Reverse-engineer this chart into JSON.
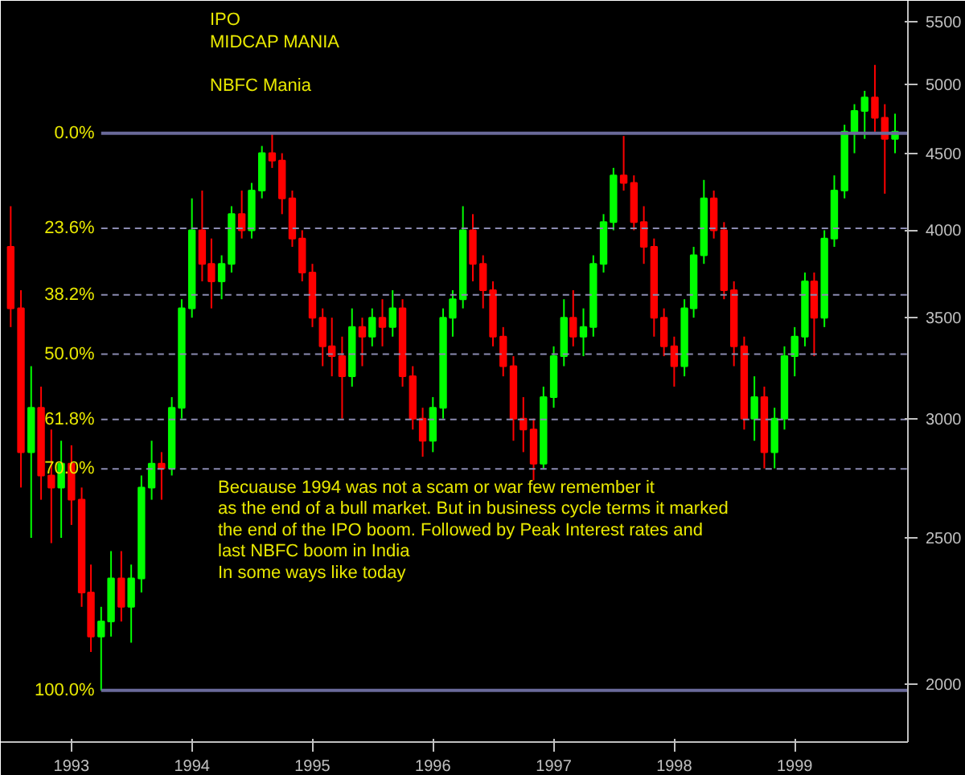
{
  "chart_data": {
    "type": "candlestick",
    "annotations": [
      "IPO",
      "MIDCAP MANIA",
      "NBFC Mania",
      "Becuause 1994 was not a scam or war few remember it\nas the end of a bull market. But in business cycle terms it marked\nthe end of the IPO boom. Followed by Peak Interest rates and\nlast NBFC boom in India\nIn some ways like today",
      {
        "text": "0.0%",
        "x": "1993-04-01",
        "y": 4640
      },
      {
        "text": "23.6%",
        "x": "1993-04-01",
        "y": 4012
      },
      {
        "text": "38.2%",
        "x": "1993-04-01",
        "y": 3624
      },
      {
        "text": "50.0%",
        "x": "1993-04-01",
        "y": 3310
      },
      {
        "text": "61.8%",
        "x": "1993-04-01",
        "y": 2996
      },
      {
        "text": "70.0%",
        "x": "1993-04-01",
        "y": 2778
      },
      {
        "text": "100.0%",
        "x": "1993-04-01",
        "y": 1980
      }
    ],
    "x": [
      "1992-07",
      "1992-08",
      "1992-09",
      "1992-10",
      "1992-11",
      "1992-12",
      "1993-01",
      "1993-02",
      "1993-03",
      "1993-04",
      "1993-05",
      "1993-06",
      "1993-07",
      "1993-08",
      "1993-09",
      "1993-10",
      "1993-11",
      "1993-12",
      "1994-01",
      "1994-02",
      "1994-03",
      "1994-04",
      "1994-05",
      "1994-06",
      "1994-07",
      "1994-08",
      "1994-09",
      "1994-10",
      "1994-11",
      "1994-12",
      "1995-01",
      "1995-02",
      "1995-03",
      "1995-04",
      "1995-05",
      "1995-06",
      "1995-07",
      "1995-08",
      "1995-09",
      "1995-10",
      "1995-11",
      "1995-12",
      "1996-01",
      "1996-02",
      "1996-03",
      "1996-04",
      "1996-05",
      "1996-06",
      "1996-07",
      "1996-08",
      "1996-09",
      "1996-10",
      "1996-11",
      "1996-12",
      "1997-01",
      "1997-02",
      "1997-03",
      "1997-04",
      "1997-05",
      "1997-06",
      "1997-07",
      "1997-08",
      "1997-09",
      "1997-10",
      "1997-11",
      "1997-12",
      "1998-01",
      "1998-02",
      "1998-03",
      "1998-04",
      "1998-05",
      "1998-06",
      "1998-07",
      "1998-08",
      "1998-09",
      "1998-10",
      "1998-11",
      "1998-12",
      "1999-01",
      "1999-02",
      "1999-03",
      "1999-04",
      "1999-05",
      "1999-06",
      "1999-07",
      "1999-08",
      "1999-09",
      "1999-10",
      "1999-11"
    ],
    "ohlc": [
      [
        3900,
        4150,
        3450,
        3550
      ],
      [
        3550,
        3650,
        2700,
        2850
      ],
      [
        2850,
        3250,
        2500,
        3050
      ],
      [
        3050,
        3150,
        2650,
        2750
      ],
      [
        2750,
        2950,
        2480,
        2700
      ],
      [
        2700,
        2900,
        2500,
        2800
      ],
      [
        2800,
        2880,
        2550,
        2650
      ],
      [
        2650,
        2700,
        2250,
        2300
      ],
      [
        2300,
        2400,
        2100,
        2150
      ],
      [
        2150,
        2250,
        1980,
        2200
      ],
      [
        2200,
        2450,
        2150,
        2350
      ],
      [
        2350,
        2450,
        2200,
        2250
      ],
      [
        2250,
        2400,
        2130,
        2350
      ],
      [
        2350,
        2750,
        2300,
        2700
      ],
      [
        2700,
        2900,
        2650,
        2800
      ],
      [
        2800,
        2850,
        2650,
        2780
      ],
      [
        2780,
        3100,
        2750,
        3050
      ],
      [
        3050,
        3600,
        3000,
        3550
      ],
      [
        3550,
        4200,
        3500,
        4000
      ],
      [
        4000,
        4250,
        3700,
        3800
      ],
      [
        3800,
        3950,
        3550,
        3700
      ],
      [
        3700,
        3850,
        3600,
        3800
      ],
      [
        3800,
        4150,
        3750,
        4100
      ],
      [
        4100,
        4250,
        3950,
        4000
      ],
      [
        4000,
        4300,
        3950,
        4250
      ],
      [
        4250,
        4550,
        4200,
        4500
      ],
      [
        4500,
        4640,
        4400,
        4450
      ],
      [
        4450,
        4500,
        4100,
        4200
      ],
      [
        4200,
        4250,
        3900,
        3950
      ],
      [
        3950,
        4000,
        3700,
        3750
      ],
      [
        3750,
        3800,
        3450,
        3500
      ],
      [
        3500,
        3550,
        3250,
        3350
      ],
      [
        3350,
        3500,
        3200,
        3300
      ],
      [
        3300,
        3400,
        3000,
        3200
      ],
      [
        3200,
        3550,
        3150,
        3450
      ],
      [
        3450,
        3500,
        3250,
        3400
      ],
      [
        3400,
        3550,
        3350,
        3500
      ],
      [
        3500,
        3600,
        3350,
        3450
      ],
      [
        3450,
        3650,
        3400,
        3550
      ],
      [
        3550,
        3600,
        3150,
        3200
      ],
      [
        3200,
        3250,
        2950,
        3000
      ],
      [
        3000,
        3050,
        2830,
        2900
      ],
      [
        2900,
        3100,
        2850,
        3050
      ],
      [
        3050,
        3550,
        3000,
        3500
      ],
      [
        3500,
        3650,
        3400,
        3600
      ],
      [
        3600,
        4150,
        3550,
        4000
      ],
      [
        4000,
        4100,
        3700,
        3800
      ],
      [
        3800,
        3850,
        3550,
        3650
      ],
      [
        3650,
        3700,
        3350,
        3400
      ],
      [
        3400,
        3450,
        3200,
        3250
      ],
      [
        3250,
        3300,
        2900,
        3000
      ],
      [
        3000,
        3100,
        2850,
        2950
      ],
      [
        2950,
        3000,
        2730,
        2800
      ],
      [
        2800,
        3150,
        2780,
        3100
      ],
      [
        3100,
        3350,
        3050,
        3300
      ],
      [
        3300,
        3600,
        3250,
        3500
      ],
      [
        3500,
        3650,
        3350,
        3400
      ],
      [
        3400,
        3550,
        3300,
        3450
      ],
      [
        3450,
        3850,
        3400,
        3800
      ],
      [
        3800,
        4100,
        3750,
        4050
      ],
      [
        4050,
        4400,
        4000,
        4350
      ],
      [
        4350,
        4620,
        4250,
        4300
      ],
      [
        4300,
        4350,
        4000,
        4050
      ],
      [
        4050,
        4150,
        3800,
        3900
      ],
      [
        3900,
        3950,
        3400,
        3500
      ],
      [
        3500,
        3550,
        3300,
        3350
      ],
      [
        3350,
        3400,
        3150,
        3250
      ],
      [
        3250,
        3600,
        3200,
        3550
      ],
      [
        3550,
        3900,
        3500,
        3850
      ],
      [
        3850,
        4320,
        3800,
        4200
      ],
      [
        4200,
        4250,
        3950,
        4000
      ],
      [
        4000,
        4050,
        3600,
        3650
      ],
      [
        3650,
        3700,
        3250,
        3350
      ],
      [
        3350,
        3400,
        2950,
        3000
      ],
      [
        3000,
        3200,
        2900,
        3100
      ],
      [
        3100,
        3150,
        2780,
        2850
      ],
      [
        2850,
        3050,
        2780,
        3000
      ],
      [
        3000,
        3350,
        2950,
        3300
      ],
      [
        3300,
        3450,
        3200,
        3400
      ],
      [
        3400,
        3750,
        3350,
        3700
      ],
      [
        3700,
        3750,
        3300,
        3500
      ],
      [
        3500,
        4000,
        3450,
        3950
      ],
      [
        3950,
        4350,
        3900,
        4250
      ],
      [
        4250,
        4700,
        4200,
        4650
      ],
      [
        4650,
        4850,
        4500,
        4800
      ],
      [
        4800,
        4950,
        4600,
        4900
      ],
      [
        4900,
        5150,
        4650,
        4750
      ],
      [
        4750,
        4850,
        4230,
        4600
      ],
      [
        4600,
        4780,
        4500,
        4650
      ]
    ],
    "colors": [
      "#ff0000",
      "#ff0000",
      "#00ff00",
      "#ff0000",
      "#ff0000",
      "#00ff00",
      "#ff0000",
      "#ff0000",
      "#ff0000",
      "#00ff00",
      "#00ff00",
      "#ff0000",
      "#00ff00",
      "#00ff00",
      "#00ff00",
      "#ff0000",
      "#00ff00",
      "#00ff00",
      "#00ff00",
      "#ff0000",
      "#ff0000",
      "#00ff00",
      "#00ff00",
      "#ff0000",
      "#00ff00",
      "#00ff00",
      "#ff0000",
      "#ff0000",
      "#ff0000",
      "#ff0000",
      "#ff0000",
      "#ff0000",
      "#ff0000",
      "#ff0000",
      "#00ff00",
      "#ff0000",
      "#00ff00",
      "#ff0000",
      "#00ff00",
      "#ff0000",
      "#ff0000",
      "#ff0000",
      "#00ff00",
      "#00ff00",
      "#00ff00",
      "#00ff00",
      "#ff0000",
      "#ff0000",
      "#ff0000",
      "#ff0000",
      "#ff0000",
      "#ff0000",
      "#ff0000",
      "#00ff00",
      "#00ff00",
      "#00ff00",
      "#ff0000",
      "#00ff00",
      "#00ff00",
      "#00ff00",
      "#00ff00",
      "#ff0000",
      "#ff0000",
      "#ff0000",
      "#ff0000",
      "#ff0000",
      "#ff0000",
      "#00ff00",
      "#00ff00",
      "#00ff00",
      "#ff0000",
      "#ff0000",
      "#ff0000",
      "#ff0000",
      "#00ff00",
      "#ff0000",
      "#00ff00",
      "#00ff00",
      "#00ff00",
      "#00ff00",
      "#ff0000",
      "#00ff00",
      "#00ff00",
      "#00ff00",
      "#00ff00",
      "#00ff00",
      "#ff0000",
      "#ff0000",
      "#00ff00"
    ],
    "log": "y",
    "xlim": [
      "1992-06-01",
      "1999-12-10"
    ],
    "xticks": [
      {
        "value": "1993-01-01",
        "label": "1993"
      },
      {
        "value": "1994-01-01",
        "label": "1994"
      },
      {
        "value": "1995-01-01",
        "label": "1995"
      },
      {
        "value": "1996-01-01",
        "label": "1996"
      },
      {
        "value": "1997-01-01",
        "label": "1997"
      },
      {
        "value": "1998-01-01",
        "label": "1998"
      },
      {
        "value": "1999-01-01",
        "label": "1999"
      }
    ],
    "ylim": [
      1830,
      5680
    ],
    "yticks": [
      2000,
      2500,
      3000,
      3500,
      4000,
      4500,
      5000,
      5500
    ],
    "ref_lines": [
      {
        "axis": "y",
        "value": 4640,
        "color": "#6a6a9a",
        "line_style": "solid"
      },
      {
        "axis": "y",
        "value": 4012,
        "color": "#8a8ab0",
        "line_style": "dashed"
      },
      {
        "axis": "y",
        "value": 3624,
        "color": "#8a8ab0",
        "line_style": "dashed"
      },
      {
        "axis": "y",
        "value": 3310,
        "color": "#8a8ab0",
        "line_style": "dashed"
      },
      {
        "axis": "y",
        "value": 2996,
        "color": "#8a8ab0",
        "line_style": "dashed"
      },
      {
        "axis": "y",
        "value": 2778,
        "color": "#8a8ab0",
        "line_style": "dashed"
      },
      {
        "axis": "y",
        "value": 1980,
        "color": "#6a6a9a",
        "line_style": "solid"
      }
    ]
  }
}
